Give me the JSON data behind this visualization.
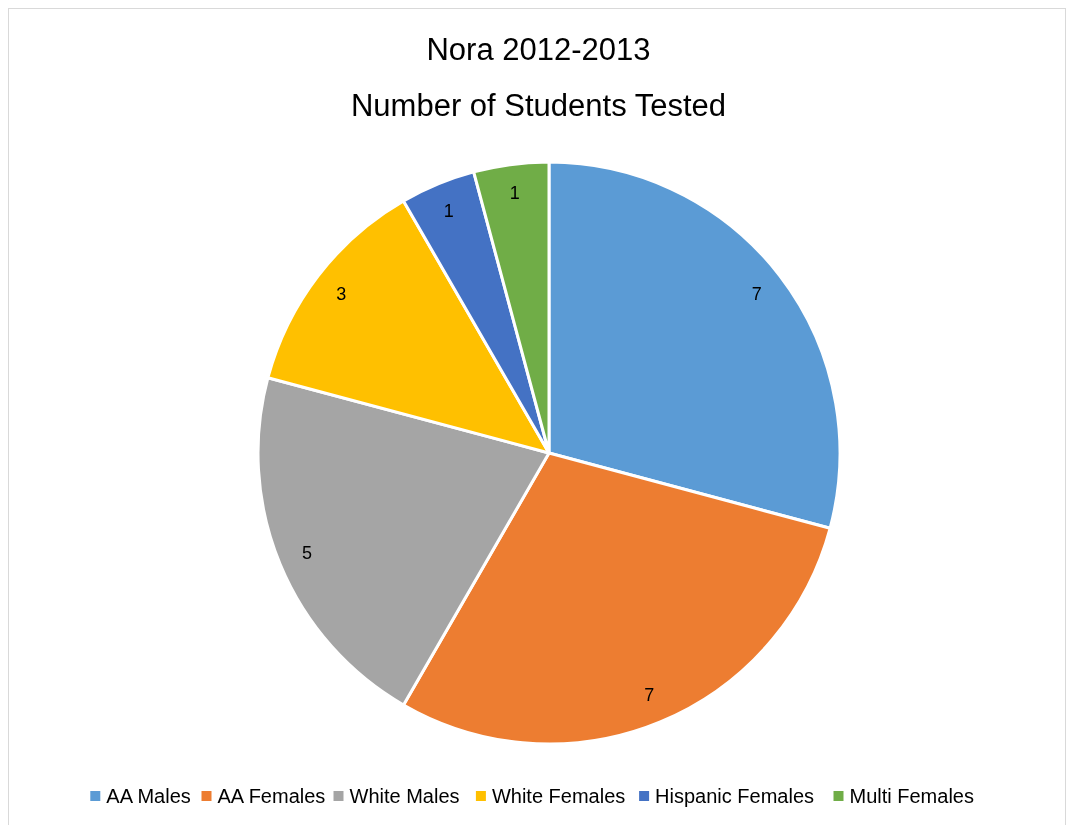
{
  "chart_data": {
    "type": "pie",
    "title": "Nora 2012-2013",
    "subtitle": "Number of Students Tested",
    "categories": [
      "AA Males",
      "AA Females",
      "White Males",
      "White Females",
      "Hispanic Females",
      "Multi Females"
    ],
    "values": [
      7,
      7,
      5,
      3,
      1,
      1
    ],
    "colors": [
      "#5b9bd5",
      "#ed7d31",
      "#a5a5a5",
      "#ffc000",
      "#4472c4",
      "#70ad47"
    ],
    "data_labels": true,
    "legend": "bottom"
  }
}
